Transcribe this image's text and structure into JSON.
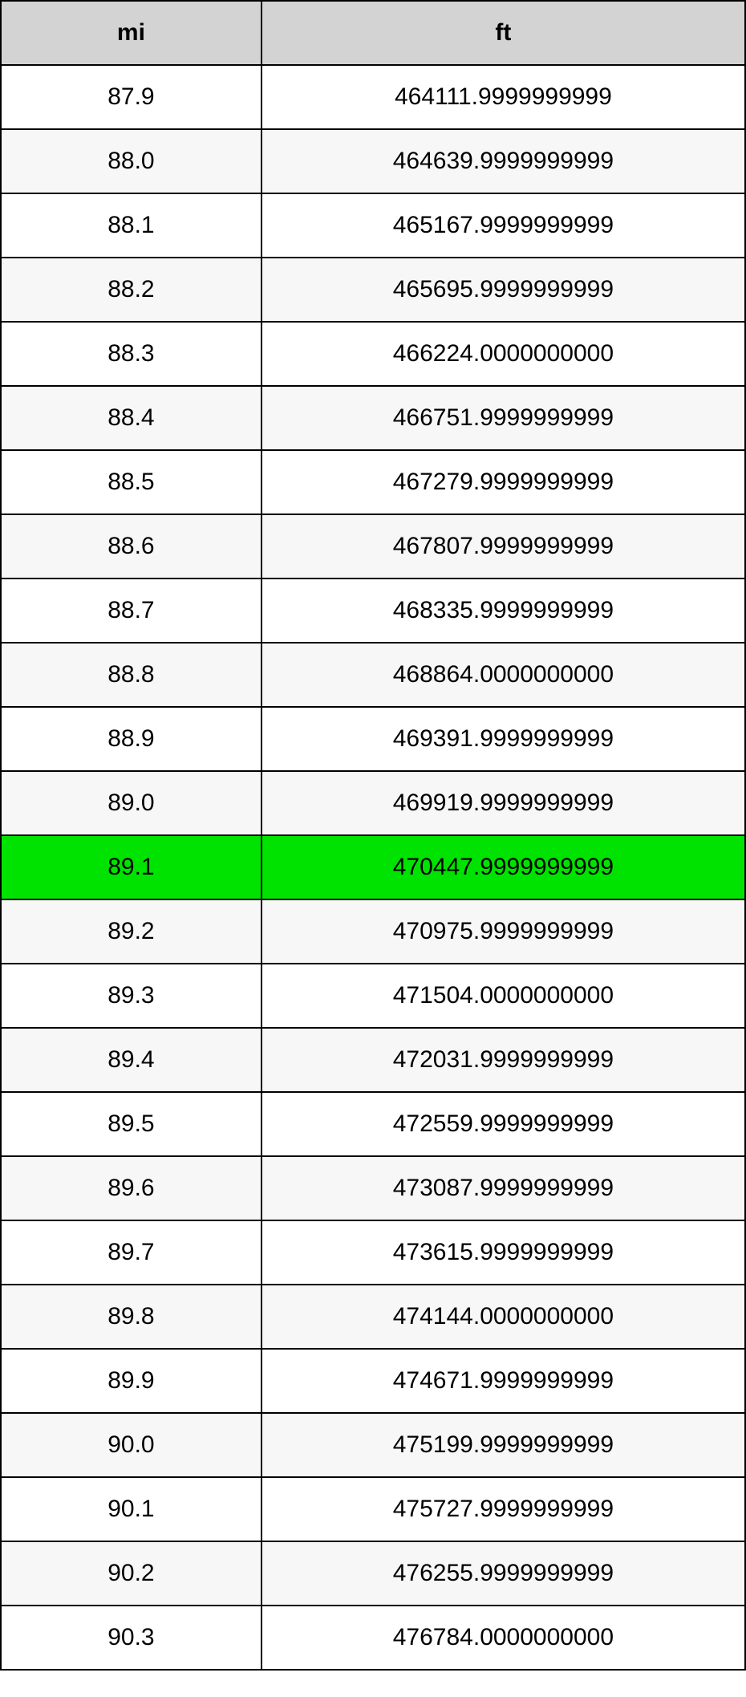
{
  "table": {
    "type": "table",
    "columns": [
      {
        "key": "mi",
        "label": "mi",
        "width_percent": 35,
        "align": "center"
      },
      {
        "key": "ft",
        "label": "ft",
        "width_percent": 65,
        "align": "center"
      }
    ],
    "header_bg_color": "#d3d3d3",
    "header_font_weight": "bold",
    "border_color": "#000000",
    "border_width": 2,
    "row_bg_even": "#ffffff",
    "row_bg_odd": "#f7f7f7",
    "highlight_bg": "#00e300",
    "text_color": "#000000",
    "font_size": 30,
    "cell_padding_v": 22,
    "rows": [
      {
        "mi": "87.9",
        "ft": "464111.9999999999",
        "highlighted": false
      },
      {
        "mi": "88.0",
        "ft": "464639.9999999999",
        "highlighted": false
      },
      {
        "mi": "88.1",
        "ft": "465167.9999999999",
        "highlighted": false
      },
      {
        "mi": "88.2",
        "ft": "465695.9999999999",
        "highlighted": false
      },
      {
        "mi": "88.3",
        "ft": "466224.0000000000",
        "highlighted": false
      },
      {
        "mi": "88.4",
        "ft": "466751.9999999999",
        "highlighted": false
      },
      {
        "mi": "88.5",
        "ft": "467279.9999999999",
        "highlighted": false
      },
      {
        "mi": "88.6",
        "ft": "467807.9999999999",
        "highlighted": false
      },
      {
        "mi": "88.7",
        "ft": "468335.9999999999",
        "highlighted": false
      },
      {
        "mi": "88.8",
        "ft": "468864.0000000000",
        "highlighted": false
      },
      {
        "mi": "88.9",
        "ft": "469391.9999999999",
        "highlighted": false
      },
      {
        "mi": "89.0",
        "ft": "469919.9999999999",
        "highlighted": false
      },
      {
        "mi": "89.1",
        "ft": "470447.9999999999",
        "highlighted": true
      },
      {
        "mi": "89.2",
        "ft": "470975.9999999999",
        "highlighted": false
      },
      {
        "mi": "89.3",
        "ft": "471504.0000000000",
        "highlighted": false
      },
      {
        "mi": "89.4",
        "ft": "472031.9999999999",
        "highlighted": false
      },
      {
        "mi": "89.5",
        "ft": "472559.9999999999",
        "highlighted": false
      },
      {
        "mi": "89.6",
        "ft": "473087.9999999999",
        "highlighted": false
      },
      {
        "mi": "89.7",
        "ft": "473615.9999999999",
        "highlighted": false
      },
      {
        "mi": "89.8",
        "ft": "474144.0000000000",
        "highlighted": false
      },
      {
        "mi": "89.9",
        "ft": "474671.9999999999",
        "highlighted": false
      },
      {
        "mi": "90.0",
        "ft": "475199.9999999999",
        "highlighted": false
      },
      {
        "mi": "90.1",
        "ft": "475727.9999999999",
        "highlighted": false
      },
      {
        "mi": "90.2",
        "ft": "476255.9999999999",
        "highlighted": false
      },
      {
        "mi": "90.3",
        "ft": "476784.0000000000",
        "highlighted": false
      }
    ]
  }
}
